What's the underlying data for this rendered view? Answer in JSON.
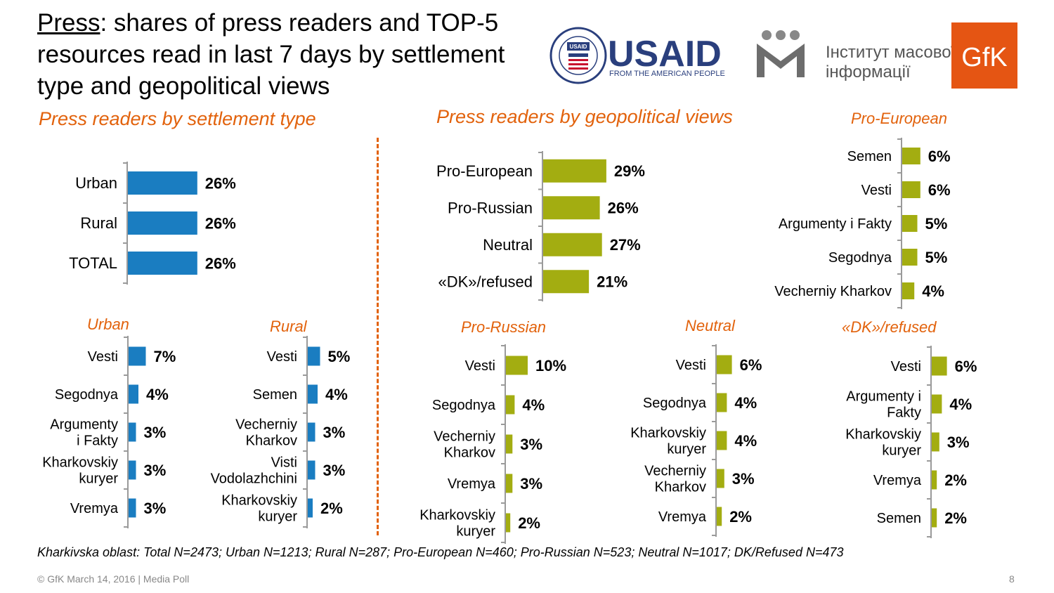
{
  "title": {
    "prefix": "Press",
    "rest": ": shares of press readers and TOP-5 resources read in last 7 days by settlement type and geopolitical views"
  },
  "headings": {
    "settlement": "Press readers by settlement type",
    "geopolitical": "Press readers by geopolitical views"
  },
  "logos": {
    "usaid_seal": "USAID",
    "usaid_name": "USAID",
    "usaid_tagline": "FROM THE AMERICAN PEOPLE",
    "imi_line1": "Інститут масової",
    "imi_line2": "інформації",
    "gfk": "GfK"
  },
  "colors": {
    "blue": "#1a7dc1",
    "olive": "#a3ad11",
    "orange": "#e2620c"
  },
  "footnote": "Kharkivska oblast: Total N=2473; Urban N=1213; Rural N=287; Pro-European N=460; Pro-Russian N=523; Neutral N=1017; DK/Refused N=473",
  "footer": "© GfK March 14, 2016 | Media Poll",
  "page_number": "8",
  "chart_data": [
    {
      "id": "settlement",
      "type": "bar",
      "orientation": "horizontal",
      "title": "",
      "color": "#1a7dc1",
      "categories": [
        "Urban",
        "Rural",
        "TOTAL"
      ],
      "values": [
        26,
        26,
        26
      ],
      "labels": [
        "26%",
        "26%",
        "26%"
      ]
    },
    {
      "id": "geo",
      "type": "bar",
      "orientation": "horizontal",
      "title": "",
      "color": "#a3ad11",
      "categories": [
        "Pro-European",
        "Pro-Russian",
        "Neutral",
        "«DK»/refused"
      ],
      "values": [
        29,
        26,
        27,
        21
      ],
      "labels": [
        "29%",
        "26%",
        "27%",
        "21%"
      ]
    },
    {
      "id": "pro_european",
      "type": "bar",
      "orientation": "horizontal",
      "title": "Pro-European",
      "color": "#a3ad11",
      "categories": [
        "Semen",
        "Vesti",
        "Argumenty i Fakty",
        "Segodnya",
        "Vecherniy Kharkov"
      ],
      "values": [
        6,
        6,
        5,
        5,
        4
      ],
      "labels": [
        "6%",
        "6%",
        "5%",
        "5%",
        "4%"
      ]
    },
    {
      "id": "urban",
      "type": "bar",
      "orientation": "horizontal",
      "title": "Urban",
      "color": "#1a7dc1",
      "categories": [
        "Vesti",
        "Segodnya",
        "Argumenty i Fakty",
        "Kharkovskiy kuryer",
        "Vremya"
      ],
      "values": [
        7,
        4,
        3,
        3,
        3
      ],
      "labels": [
        "7%",
        "4%",
        "3%",
        "3%",
        "3%"
      ]
    },
    {
      "id": "rural",
      "type": "bar",
      "orientation": "horizontal",
      "title": "Rural",
      "color": "#1a7dc1",
      "categories": [
        "Vesti",
        "Semen",
        "Vecherniy Kharkov",
        "Visti Vodolazhchini",
        "Kharkovskiy kuryer"
      ],
      "values": [
        5,
        4,
        3,
        3,
        2
      ],
      "labels": [
        "5%",
        "4%",
        "3%",
        "3%",
        "2%"
      ]
    },
    {
      "id": "pro_russian",
      "type": "bar",
      "orientation": "horizontal",
      "title": "Pro-Russian",
      "color": "#a3ad11",
      "categories": [
        "Vesti",
        "Segodnya",
        "Vecherniy Kharkov",
        "Vremya",
        "Kharkovskiy kuryer"
      ],
      "values": [
        10,
        4,
        3,
        3,
        2
      ],
      "labels": [
        "10%",
        "4%",
        "3%",
        "3%",
        "2%"
      ]
    },
    {
      "id": "neutral",
      "type": "bar",
      "orientation": "horizontal",
      "title": "Neutral",
      "color": "#a3ad11",
      "categories": [
        "Vesti",
        "Segodnya",
        "Kharkovskiy kuryer",
        "Vecherniy Kharkov",
        "Vremya"
      ],
      "values": [
        6,
        4,
        4,
        3,
        2
      ],
      "labels": [
        "6%",
        "4%",
        "4%",
        "3%",
        "2%"
      ]
    },
    {
      "id": "dk_refused",
      "type": "bar",
      "orientation": "horizontal",
      "title": "«DK»/refused",
      "color": "#a3ad11",
      "categories": [
        "Vesti",
        "Argumenty i Fakty",
        "Kharkovskiy kuryer",
        "Vremya",
        "Semen"
      ],
      "values": [
        6,
        4,
        3,
        2,
        2
      ],
      "labels": [
        "6%",
        "4%",
        "3%",
        "2%",
        "2%"
      ]
    }
  ]
}
